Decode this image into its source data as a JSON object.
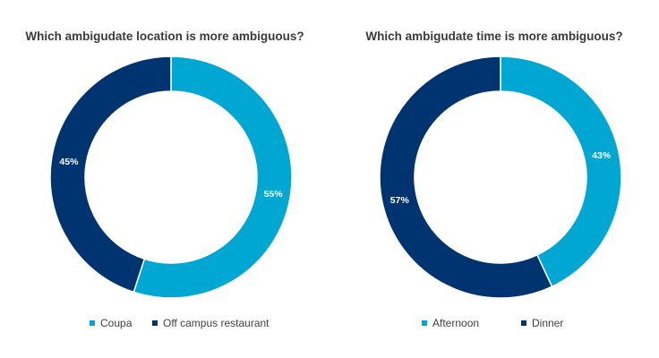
{
  "chart_data": [
    {
      "type": "pie",
      "title": "Which ambigudate location is more ambiguous?",
      "categories": [
        "Coupa",
        "Off campus restaurant"
      ],
      "values": [
        55,
        45
      ],
      "data_labels": [
        "55%",
        "45%"
      ],
      "colors": [
        "#00a7d3",
        "#003471"
      ],
      "donut": true,
      "legend": "bottom"
    },
    {
      "type": "pie",
      "title": "Which ambigudate time is more ambiguous?",
      "categories": [
        "Afternoon",
        "Dinner"
      ],
      "values": [
        43,
        57
      ],
      "data_labels": [
        "43%",
        "57%"
      ],
      "colors": [
        "#00a7d3",
        "#003471"
      ],
      "donut": true,
      "legend": "bottom"
    }
  ]
}
